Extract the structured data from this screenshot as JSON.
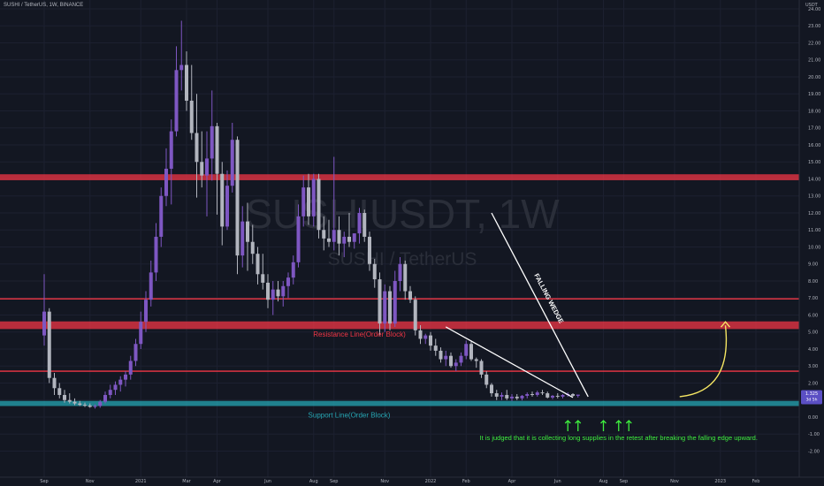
{
  "header": {
    "symbol_line": "SUSHI / TetherUS, 1W, BINANCE",
    "currency": "USDT"
  },
  "watermark": {
    "ticker": "SUSHIUSDT, 1W",
    "name": "SUSHI / TetherUS"
  },
  "colors": {
    "background": "#131722",
    "up_candle": "#7e57c2",
    "down_candle": "#b2b5be",
    "resistance": "#f23645",
    "support": "#26a6b3",
    "wedge": "#ffffff",
    "annotation_green": "#3ff03f",
    "arrow_yellow": "#f5e663",
    "price_badge": "#5b4fc4"
  },
  "chart_data": {
    "type": "candlestick",
    "symbol": "SUSHI / TetherUS",
    "interval": "1W",
    "exchange": "BINANCE",
    "ylim": [
      -2.0,
      24.0
    ],
    "y_ticks": [
      -2.0,
      -1.0,
      0.0,
      1.0,
      2.0,
      3.0,
      4.0,
      5.0,
      6.0,
      7.0,
      8.0,
      9.0,
      10.0,
      11.0,
      12.0,
      13.0,
      14.0,
      15.0,
      16.0,
      17.0,
      18.0,
      19.0,
      20.0,
      21.0,
      22.0,
      23.0,
      24.0
    ],
    "x_labels": [
      "Sep",
      "Nov",
      "2021",
      "Mar",
      "Apr",
      "Jun",
      "Aug",
      "Sep",
      "Nov",
      "2022",
      "Feb",
      "Apr",
      "Jun",
      "Aug",
      "Sep",
      "Nov",
      "2023",
      "Feb"
    ],
    "x_label_weeks": [
      0,
      9,
      19,
      28,
      34,
      44,
      53,
      57,
      67,
      76,
      83,
      92,
      101,
      110,
      114,
      124,
      133,
      140
    ],
    "current_price": {
      "value": 1.325,
      "label": "1.325",
      "countdown": "3d 5h"
    },
    "candles": [
      {
        "o": 4.8,
        "h": 8.4,
        "l": 4.2,
        "c": 6.2
      },
      {
        "o": 6.2,
        "h": 6.4,
        "l": 2.0,
        "c": 2.3
      },
      {
        "o": 2.3,
        "h": 2.6,
        "l": 1.3,
        "c": 1.7
      },
      {
        "o": 1.7,
        "h": 2.0,
        "l": 1.1,
        "c": 1.3
      },
      {
        "o": 1.3,
        "h": 1.6,
        "l": 0.85,
        "c": 1.0
      },
      {
        "o": 1.0,
        "h": 1.4,
        "l": 0.8,
        "c": 0.9
      },
      {
        "o": 0.9,
        "h": 1.1,
        "l": 0.7,
        "c": 0.8
      },
      {
        "o": 0.8,
        "h": 0.95,
        "l": 0.65,
        "c": 0.72
      },
      {
        "o": 0.72,
        "h": 0.85,
        "l": 0.6,
        "c": 0.68
      },
      {
        "o": 0.68,
        "h": 0.8,
        "l": 0.55,
        "c": 0.6
      },
      {
        "o": 0.6,
        "h": 0.75,
        "l": 0.5,
        "c": 0.65
      },
      {
        "o": 0.65,
        "h": 1.0,
        "l": 0.55,
        "c": 0.9
      },
      {
        "o": 0.9,
        "h": 1.5,
        "l": 0.8,
        "c": 1.3
      },
      {
        "o": 1.3,
        "h": 1.9,
        "l": 1.1,
        "c": 1.6
      },
      {
        "o": 1.6,
        "h": 2.1,
        "l": 1.3,
        "c": 1.9
      },
      {
        "o": 1.9,
        "h": 2.4,
        "l": 1.5,
        "c": 2.2
      },
      {
        "o": 2.2,
        "h": 2.7,
        "l": 1.8,
        "c": 2.5
      },
      {
        "o": 2.5,
        "h": 3.6,
        "l": 2.2,
        "c": 3.3
      },
      {
        "o": 3.3,
        "h": 4.6,
        "l": 3.0,
        "c": 4.3
      },
      {
        "o": 4.3,
        "h": 6.2,
        "l": 4.0,
        "c": 5.6
      },
      {
        "o": 5.6,
        "h": 7.4,
        "l": 5.0,
        "c": 6.9
      },
      {
        "o": 6.9,
        "h": 9.2,
        "l": 6.5,
        "c": 8.5
      },
      {
        "o": 8.5,
        "h": 11.4,
        "l": 8.0,
        "c": 10.6
      },
      {
        "o": 10.6,
        "h": 13.5,
        "l": 10.0,
        "c": 13.0
      },
      {
        "o": 13.0,
        "h": 15.8,
        "l": 12.4,
        "c": 14.6
      },
      {
        "o": 14.6,
        "h": 17.5,
        "l": 12.5,
        "c": 16.8
      },
      {
        "o": 16.8,
        "h": 21.8,
        "l": 16.5,
        "c": 20.4
      },
      {
        "o": 20.4,
        "h": 23.3,
        "l": 19.2,
        "c": 20.7
      },
      {
        "o": 20.7,
        "h": 21.5,
        "l": 18.0,
        "c": 18.6
      },
      {
        "o": 18.6,
        "h": 20.7,
        "l": 16.3,
        "c": 16.7
      },
      {
        "o": 16.7,
        "h": 19.0,
        "l": 12.9,
        "c": 15.0
      },
      {
        "o": 15.0,
        "h": 16.8,
        "l": 13.5,
        "c": 14.2
      },
      {
        "o": 14.2,
        "h": 16.8,
        "l": 11.8,
        "c": 15.2
      },
      {
        "o": 15.2,
        "h": 19.2,
        "l": 13.9,
        "c": 17.1
      },
      {
        "o": 17.1,
        "h": 17.3,
        "l": 11.9,
        "c": 14.3
      },
      {
        "o": 14.3,
        "h": 15.0,
        "l": 10.1,
        "c": 11.2
      },
      {
        "o": 11.2,
        "h": 14.5,
        "l": 11.0,
        "c": 13.6
      },
      {
        "o": 13.6,
        "h": 17.3,
        "l": 13.2,
        "c": 16.3
      },
      {
        "o": 16.3,
        "h": 16.5,
        "l": 8.4,
        "c": 9.5
      },
      {
        "o": 9.5,
        "h": 12.4,
        "l": 8.8,
        "c": 11.5
      },
      {
        "o": 11.5,
        "h": 12.6,
        "l": 8.6,
        "c": 10.3
      },
      {
        "o": 10.3,
        "h": 11.3,
        "l": 9.0,
        "c": 9.6
      },
      {
        "o": 9.6,
        "h": 10.0,
        "l": 7.8,
        "c": 8.4
      },
      {
        "o": 8.4,
        "h": 9.6,
        "l": 7.5,
        "c": 7.9
      },
      {
        "o": 7.9,
        "h": 8.4,
        "l": 6.4,
        "c": 6.9
      },
      {
        "o": 6.9,
        "h": 8.0,
        "l": 6.0,
        "c": 7.5
      },
      {
        "o": 7.5,
        "h": 8.0,
        "l": 6.8,
        "c": 7.1
      },
      {
        "o": 7.1,
        "h": 8.0,
        "l": 6.5,
        "c": 7.7
      },
      {
        "o": 7.7,
        "h": 8.5,
        "l": 7.0,
        "c": 8.2
      },
      {
        "o": 8.2,
        "h": 9.5,
        "l": 7.8,
        "c": 9.1
      },
      {
        "o": 9.1,
        "h": 12.5,
        "l": 8.8,
        "c": 11.8
      },
      {
        "o": 11.8,
        "h": 14.2,
        "l": 11.2,
        "c": 13.5
      },
      {
        "o": 13.5,
        "h": 14.3,
        "l": 11.3,
        "c": 11.8
      },
      {
        "o": 11.8,
        "h": 14.3,
        "l": 11.2,
        "c": 14.0
      },
      {
        "o": 14.0,
        "h": 14.3,
        "l": 10.5,
        "c": 11.0
      },
      {
        "o": 11.0,
        "h": 11.8,
        "l": 9.8,
        "c": 10.5
      },
      {
        "o": 10.5,
        "h": 11.6,
        "l": 10.0,
        "c": 10.3
      },
      {
        "o": 10.3,
        "h": 15.3,
        "l": 9.8,
        "c": 11.0
      },
      {
        "o": 11.0,
        "h": 11.8,
        "l": 9.5,
        "c": 10.2
      },
      {
        "o": 10.2,
        "h": 10.9,
        "l": 9.4,
        "c": 10.6
      },
      {
        "o": 10.6,
        "h": 12.0,
        "l": 10.0,
        "c": 10.3
      },
      {
        "o": 10.3,
        "h": 10.8,
        "l": 9.9,
        "c": 10.8
      },
      {
        "o": 10.8,
        "h": 12.3,
        "l": 10.2,
        "c": 12.0
      },
      {
        "o": 12.0,
        "h": 12.2,
        "l": 10.3,
        "c": 10.6
      },
      {
        "o": 10.6,
        "h": 10.9,
        "l": 8.6,
        "c": 9.0
      },
      {
        "o": 9.0,
        "h": 9.3,
        "l": 7.6,
        "c": 8.1
      },
      {
        "o": 8.1,
        "h": 8.5,
        "l": 4.8,
        "c": 5.5
      },
      {
        "o": 5.5,
        "h": 7.8,
        "l": 5.0,
        "c": 7.4
      },
      {
        "o": 7.4,
        "h": 7.7,
        "l": 5.1,
        "c": 5.5
      },
      {
        "o": 5.5,
        "h": 8.6,
        "l": 5.3,
        "c": 8.0
      },
      {
        "o": 8.0,
        "h": 9.4,
        "l": 7.4,
        "c": 9.0
      },
      {
        "o": 9.0,
        "h": 9.2,
        "l": 6.9,
        "c": 7.4
      },
      {
        "o": 7.4,
        "h": 7.7,
        "l": 6.7,
        "c": 6.9
      },
      {
        "o": 6.9,
        "h": 7.1,
        "l": 4.8,
        "c": 5.1
      },
      {
        "o": 5.1,
        "h": 5.4,
        "l": 4.3,
        "c": 4.6
      },
      {
        "o": 4.6,
        "h": 4.9,
        "l": 4.3,
        "c": 4.8
      },
      {
        "o": 4.8,
        "h": 5.0,
        "l": 3.9,
        "c": 4.2
      },
      {
        "o": 4.2,
        "h": 4.6,
        "l": 3.6,
        "c": 3.9
      },
      {
        "o": 3.9,
        "h": 4.1,
        "l": 3.2,
        "c": 3.4
      },
      {
        "o": 3.4,
        "h": 3.9,
        "l": 3.0,
        "c": 3.6
      },
      {
        "o": 3.6,
        "h": 3.8,
        "l": 2.9,
        "c": 3.0
      },
      {
        "o": 3.0,
        "h": 3.4,
        "l": 2.7,
        "c": 3.2
      },
      {
        "o": 3.2,
        "h": 3.8,
        "l": 3.0,
        "c": 3.6
      },
      {
        "o": 3.6,
        "h": 4.5,
        "l": 3.4,
        "c": 4.3
      },
      {
        "o": 4.3,
        "h": 4.5,
        "l": 3.3,
        "c": 3.4
      },
      {
        "o": 3.4,
        "h": 3.5,
        "l": 2.9,
        "c": 3.3
      },
      {
        "o": 3.3,
        "h": 3.4,
        "l": 2.3,
        "c": 2.5
      },
      {
        "o": 2.5,
        "h": 2.7,
        "l": 1.7,
        "c": 1.9
      },
      {
        "o": 1.9,
        "h": 2.0,
        "l": 1.2,
        "c": 1.4
      },
      {
        "o": 1.4,
        "h": 1.6,
        "l": 1.0,
        "c": 1.2
      },
      {
        "o": 1.2,
        "h": 1.45,
        "l": 1.0,
        "c": 1.3
      },
      {
        "o": 1.3,
        "h": 1.6,
        "l": 1.0,
        "c": 1.1
      },
      {
        "o": 1.1,
        "h": 1.35,
        "l": 0.95,
        "c": 1.2
      },
      {
        "o": 1.2,
        "h": 1.35,
        "l": 1.0,
        "c": 1.1
      },
      {
        "o": 1.1,
        "h": 1.3,
        "l": 0.98,
        "c": 1.25
      },
      {
        "o": 1.25,
        "h": 1.45,
        "l": 1.1,
        "c": 1.35
      },
      {
        "o": 1.35,
        "h": 1.5,
        "l": 1.2,
        "c": 1.3
      },
      {
        "o": 1.3,
        "h": 1.55,
        "l": 1.2,
        "c": 1.45
      },
      {
        "o": 1.45,
        "h": 1.6,
        "l": 1.3,
        "c": 1.4
      },
      {
        "o": 1.4,
        "h": 1.5,
        "l": 1.1,
        "c": 1.15
      },
      {
        "o": 1.15,
        "h": 1.3,
        "l": 1.05,
        "c": 1.25
      },
      {
        "o": 1.25,
        "h": 1.4,
        "l": 1.1,
        "c": 1.2
      },
      {
        "o": 1.2,
        "h": 1.35,
        "l": 1.1,
        "c": 1.3
      },
      {
        "o": 1.3,
        "h": 1.45,
        "l": 1.2,
        "c": 1.35
      },
      {
        "o": 1.35,
        "h": 1.4,
        "l": 1.2,
        "c": 1.25
      },
      {
        "o": 1.25,
        "h": 1.3,
        "l": 1.15,
        "c": 1.32
      }
    ],
    "horizontal_levels": [
      {
        "value": 14.1,
        "kind": "zone",
        "height": 0.35,
        "role": "resistance"
      },
      {
        "value": 6.95,
        "kind": "line",
        "role": "resistance"
      },
      {
        "value": 5.4,
        "kind": "zone",
        "height": 0.45,
        "role": "resistance"
      },
      {
        "value": 2.7,
        "kind": "line",
        "role": "resistance"
      },
      {
        "value": 0.8,
        "kind": "zone",
        "height": 0.3,
        "role": "support"
      }
    ],
    "falling_wedge": {
      "upper": [
        [
          88,
          12.0
        ],
        [
          107,
          1.2
        ]
      ],
      "lower": [
        [
          79,
          5.3
        ],
        [
          104,
          1.15
        ]
      ]
    },
    "projection_arrow": {
      "from": [
        125,
        1.2
      ],
      "to": [
        134,
        5.6
      ]
    },
    "bounce_arrows_at_weeks": [
      103,
      105,
      110,
      113,
      115
    ],
    "annotations": {
      "resistance_label": "Resistance Line(Order Block)",
      "support_label": "Support Line(Order Block)",
      "pattern_label": "FALLING WEDGE",
      "comment": "It is judged that it is collecting long supplies in the retest after breaking the falling edge upward."
    }
  }
}
